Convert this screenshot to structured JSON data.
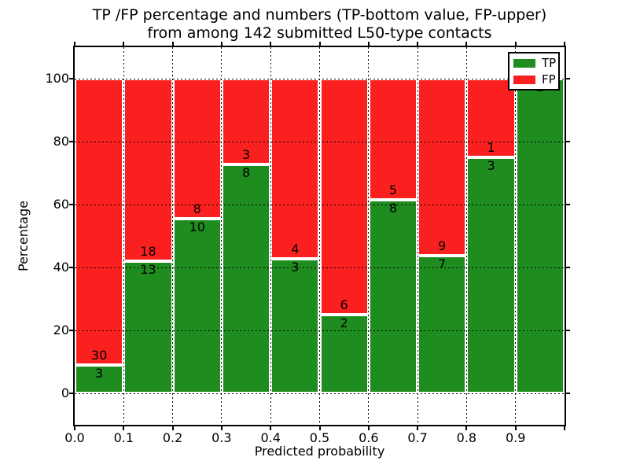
{
  "title": {
    "line1": "TP /FP percentage and numbers (TP-bottom value, FP-upper)",
    "line2": "from among 142 submitted L50-type contacts"
  },
  "axes": {
    "xlabel": "Predicted probability",
    "ylabel": "Percentage",
    "x_tick_labels": [
      "0.0",
      "0.1",
      "0.2",
      "0.3",
      "0.4",
      "0.5",
      "0.6",
      "0.7",
      "0.8",
      "0.9"
    ],
    "y_tick_values": [
      0,
      20,
      40,
      60,
      80,
      100
    ],
    "xlim": [
      0.0,
      1.0
    ],
    "ylim": [
      -10,
      110
    ]
  },
  "legend": {
    "position": "upper right",
    "items": [
      {
        "label": "TP",
        "color": "#1f8c1f"
      },
      {
        "label": "FP",
        "color": "#fb2020"
      }
    ]
  },
  "colors": {
    "tp_green": "#1f8c1f",
    "fp_red": "#fb2020",
    "bar_edge": "#ffffff",
    "grid": "#000000",
    "background": "#ffffff"
  },
  "chart_data": {
    "type": "bar",
    "stacked": true,
    "normalized": "each bin scaled to 100%",
    "title": "TP /FP percentage and numbers (TP-bottom value, FP-upper)\nfrom among 142 submitted L50-type contacts",
    "xlabel": "Predicted probability",
    "ylabel": "Percentage",
    "xlim": [
      0.0,
      1.0
    ],
    "ylim": [
      -10,
      110
    ],
    "grid": "dotted, both axes",
    "legend_position": "upper right",
    "total_contacts": 142,
    "bin_width": 0.1,
    "bin_starts": [
      0.0,
      0.1,
      0.2,
      0.3,
      0.4,
      0.5,
      0.6,
      0.7,
      0.8,
      0.9
    ],
    "categories": [
      "0.0-0.1",
      "0.1-0.2",
      "0.2-0.3",
      "0.3-0.4",
      "0.4-0.5",
      "0.5-0.6",
      "0.6-0.7",
      "0.7-0.8",
      "0.8-0.9",
      "0.9-1.0"
    ],
    "series": [
      {
        "name": "TP",
        "color": "#1f8c1f",
        "counts": [
          3,
          13,
          10,
          8,
          3,
          2,
          8,
          7,
          3,
          1
        ]
      },
      {
        "name": "FP",
        "color": "#fb2020",
        "counts": [
          30,
          18,
          8,
          3,
          4,
          6,
          5,
          9,
          1,
          0
        ]
      }
    ],
    "tp_percent_per_bin": [
      9.1,
      41.9,
      55.6,
      72.7,
      42.9,
      25.0,
      61.5,
      43.8,
      75.0,
      100.0
    ]
  }
}
